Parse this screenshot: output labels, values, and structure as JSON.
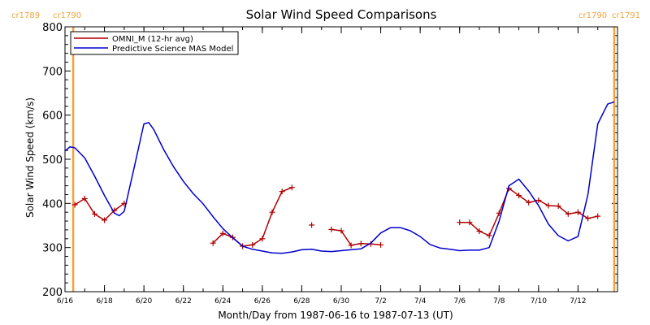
{
  "chart_data": {
    "type": "line",
    "title": "Solar Wind Speed Comparisons",
    "xlabel": "Month/Day from 1987-06-16 to 1987-07-13 (UT)",
    "ylabel": "Solar Wind Speed (km/s)",
    "ylim": [
      200,
      800
    ],
    "xlim": [
      "1987-06-16",
      "1987-07-14"
    ],
    "y_ticks": [
      200,
      300,
      400,
      500,
      600,
      700,
      800
    ],
    "x_tick_labels": [
      "6/16",
      "6/18",
      "6/20",
      "6/22",
      "6/24",
      "6/26",
      "6/28",
      "6/30",
      "7/2",
      "7/4",
      "7/6",
      "7/8",
      "7/10",
      "7/12"
    ],
    "x_tick_dates": [
      "1987-06-16",
      "1987-06-18",
      "1987-06-20",
      "1987-06-22",
      "1987-06-24",
      "1987-06-26",
      "1987-06-28",
      "1987-06-30",
      "1987-07-02",
      "1987-07-04",
      "1987-07-06",
      "1987-07-08",
      "1987-07-10",
      "1987-07-12"
    ],
    "legend_placement": "top-left",
    "colors": {
      "omni": "#b00000",
      "model": "#0000cc",
      "boundary": "#f2a33a",
      "axis": "#000000"
    },
    "carrington_boundaries": [
      {
        "date": "1987-06-16 10:00",
        "left_label": "cr1789",
        "right_label": "cr1790"
      },
      {
        "date": "1987-07-13 20:00",
        "left_label": "cr1790",
        "right_label": "cr1791"
      }
    ],
    "series": [
      {
        "name": "OMNI_M (12-hr avg)",
        "marker": "plus",
        "segments": [
          [
            [
              "1987-06-16 12:00",
              397
            ],
            [
              "1987-06-17 00:00",
              411
            ],
            [
              "1987-06-17 12:00",
              376
            ],
            [
              "1987-06-18 00:00",
              362
            ],
            [
              "1987-06-18 12:00",
              384
            ],
            [
              "1987-06-19 00:00",
              400
            ]
          ],
          [
            [
              "1987-06-23 12:00",
              310
            ],
            [
              "1987-06-24 00:00",
              332
            ],
            [
              "1987-06-24 12:00",
              323
            ],
            [
              "1987-06-25 00:00",
              303
            ],
            [
              "1987-06-25 12:00",
              306
            ],
            [
              "1987-06-26 00:00",
              320
            ],
            [
              "1987-06-26 12:00",
              380
            ],
            [
              "1987-06-27 00:00",
              427
            ],
            [
              "1987-06-27 12:00",
              436
            ]
          ],
          [
            [
              "1987-06-28 12:00",
              351
            ]
          ],
          [
            [
              "1987-06-29 12:00",
              341
            ],
            [
              "1987-06-30 00:00",
              338
            ],
            [
              "1987-06-30 12:00",
              305
            ],
            [
              "1987-07-01 00:00",
              309
            ],
            [
              "1987-07-01 12:00",
              308
            ],
            [
              "1987-07-02 00:00",
              306
            ]
          ],
          [
            [
              "1987-07-06 00:00",
              357
            ],
            [
              "1987-07-06 12:00",
              357
            ],
            [
              "1987-07-07 00:00",
              337
            ],
            [
              "1987-07-07 12:00",
              327
            ],
            [
              "1987-07-08 00:00",
              378
            ],
            [
              "1987-07-08 12:00",
              434
            ],
            [
              "1987-07-09 00:00",
              418
            ],
            [
              "1987-07-09 12:00",
              402
            ],
            [
              "1987-07-10 00:00",
              407
            ],
            [
              "1987-07-10 12:00",
              395
            ],
            [
              "1987-07-11 00:00",
              394
            ],
            [
              "1987-07-11 12:00",
              376
            ],
            [
              "1987-07-12 00:00",
              380
            ],
            [
              "1987-07-12 12:00",
              366
            ],
            [
              "1987-07-13 00:00",
              371
            ]
          ]
        ]
      },
      {
        "name": "Predictive Science MAS Model",
        "marker": "none",
        "segments": [
          [
            [
              "1987-06-16 00:00",
              519
            ],
            [
              "1987-06-16 06:00",
              528
            ],
            [
              "1987-06-16 12:00",
              526
            ],
            [
              "1987-06-17 00:00",
              503
            ],
            [
              "1987-06-17 12:00",
              462
            ],
            [
              "1987-06-18 00:00",
              418
            ],
            [
              "1987-06-18 12:00",
              378
            ],
            [
              "1987-06-18 18:00",
              372
            ],
            [
              "1987-06-19 00:00",
              382
            ],
            [
              "1987-06-19 12:00",
              480
            ],
            [
              "1987-06-20 00:00",
              580
            ],
            [
              "1987-06-20 06:00",
              583
            ],
            [
              "1987-06-20 12:00",
              567
            ],
            [
              "1987-06-21 00:00",
              522
            ],
            [
              "1987-06-21 12:00",
              483
            ],
            [
              "1987-06-22 00:00",
              450
            ],
            [
              "1987-06-22 12:00",
              422
            ],
            [
              "1987-06-23 00:00",
              399
            ],
            [
              "1987-06-23 12:00",
              370
            ],
            [
              "1987-06-24 00:00",
              343
            ],
            [
              "1987-06-24 12:00",
              322
            ],
            [
              "1987-06-25 00:00",
              303
            ],
            [
              "1987-06-25 12:00",
              296
            ],
            [
              "1987-06-26 00:00",
              292
            ],
            [
              "1987-06-26 12:00",
              288
            ],
            [
              "1987-06-27 00:00",
              287
            ],
            [
              "1987-06-27 12:00",
              290
            ],
            [
              "1987-06-28 00:00",
              295
            ],
            [
              "1987-06-28 12:00",
              296
            ],
            [
              "1987-06-29 00:00",
              292
            ],
            [
              "1987-06-29 12:00",
              291
            ],
            [
              "1987-06-30 00:00",
              293
            ],
            [
              "1987-06-30 12:00",
              295
            ],
            [
              "1987-07-01 00:00",
              297
            ],
            [
              "1987-07-01 12:00",
              310
            ],
            [
              "1987-07-02 00:00",
              333
            ],
            [
              "1987-07-02 12:00",
              345
            ],
            [
              "1987-07-03 00:00",
              345
            ],
            [
              "1987-07-03 12:00",
              338
            ],
            [
              "1987-07-04 00:00",
              325
            ],
            [
              "1987-07-04 12:00",
              307
            ],
            [
              "1987-07-05 00:00",
              299
            ],
            [
              "1987-07-05 12:00",
              296
            ],
            [
              "1987-07-06 00:00",
              293
            ],
            [
              "1987-07-06 12:00",
              294
            ],
            [
              "1987-07-07 00:00",
              294
            ],
            [
              "1987-07-07 12:00",
              300
            ],
            [
              "1987-07-08 00:00",
              360
            ],
            [
              "1987-07-08 12:00",
              440
            ],
            [
              "1987-07-09 00:00",
              455
            ],
            [
              "1987-07-09 12:00",
              428
            ],
            [
              "1987-07-10 00:00",
              395
            ],
            [
              "1987-07-10 12:00",
              353
            ],
            [
              "1987-07-11 00:00",
              327
            ],
            [
              "1987-07-11 12:00",
              315
            ],
            [
              "1987-07-12 00:00",
              325
            ],
            [
              "1987-07-12 12:00",
              420
            ],
            [
              "1987-07-13 00:00",
              580
            ],
            [
              "1987-07-13 12:00",
              625
            ],
            [
              "1987-07-13 20:00",
              630
            ]
          ]
        ]
      }
    ]
  }
}
